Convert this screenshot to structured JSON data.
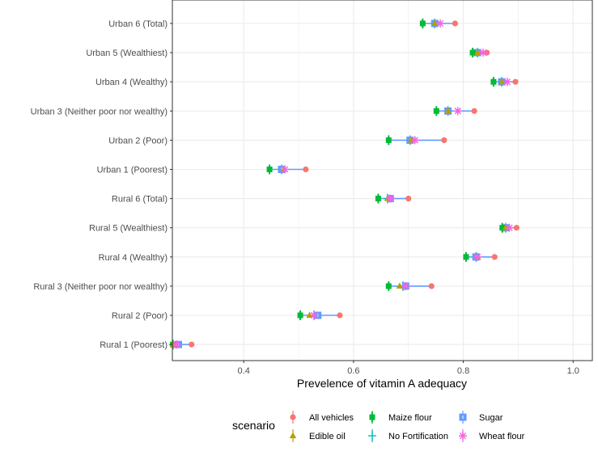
{
  "chart_data": {
    "type": "dot-range",
    "xlabel": "Prevelence of vitamin A adequacy",
    "ylabel": "",
    "xlim": [
      0.27,
      1.035
    ],
    "xticks": [
      0.4,
      0.6,
      0.8,
      1.0
    ],
    "xtick_labels": [
      "0.4",
      "0.6",
      "0.8",
      "1.0"
    ],
    "categories": [
      "Urban 6 (Total)",
      "Urban 5 (Wealthiest)",
      "Urban 4 (Wealthy)",
      "Urban 3 (Neither poor nor wealthy)",
      "Urban 2 (Poor)",
      "Urban 1 (Poorest)",
      "Rural 6 (Total)",
      "Rural 5 (Wealthiest)",
      "Rural 4 (Wealthy)",
      "Rural 3 (Neither poor nor wealthy)",
      "Rural 2 (Poor)",
      "Rural 1 (Poorest)"
    ],
    "range_line_color": "#619CFF",
    "grid": true,
    "legend": {
      "title": "scenario",
      "position": "bottom"
    },
    "series": [
      {
        "name": "All vehicles",
        "color": "#F8766D",
        "marker": "circle",
        "values": [
          0.785,
          0.843,
          0.895,
          0.82,
          0.765,
          0.513,
          0.7,
          0.897,
          0.857,
          0.742,
          0.575,
          0.305
        ]
      },
      {
        "name": "Edible oil",
        "color": "#B79F00",
        "marker": "triangle",
        "values": [
          0.748,
          0.826,
          0.87,
          0.772,
          0.705,
          0.473,
          0.662,
          0.877,
          0.826,
          0.684,
          0.52,
          0.271
        ]
      },
      {
        "name": "Maize flour",
        "color": "#00BA38",
        "marker": "plus-bold",
        "values": [
          0.726,
          0.817,
          0.855,
          0.751,
          0.664,
          0.447,
          0.645,
          0.871,
          0.805,
          0.664,
          0.503,
          0.271
        ]
      },
      {
        "name": "No Fortification",
        "color": "#00BFC4",
        "marker": "plus",
        "values": [
          0.748,
          0.826,
          0.87,
          0.772,
          0.703,
          0.469,
          0.662,
          0.877,
          0.823,
          0.69,
          0.528,
          0.271
        ]
      },
      {
        "name": "Sugar",
        "color": "#619CFF",
        "marker": "boxplus",
        "values": [
          0.748,
          0.826,
          0.87,
          0.772,
          0.703,
          0.469,
          0.667,
          0.877,
          0.823,
          0.695,
          0.535,
          0.281
        ]
      },
      {
        "name": "Wheat flour",
        "color": "#F564E3",
        "marker": "asterisk",
        "values": [
          0.758,
          0.836,
          0.88,
          0.79,
          0.712,
          0.475,
          0.667,
          0.884,
          0.826,
          0.695,
          0.528,
          0.278
        ]
      }
    ]
  }
}
